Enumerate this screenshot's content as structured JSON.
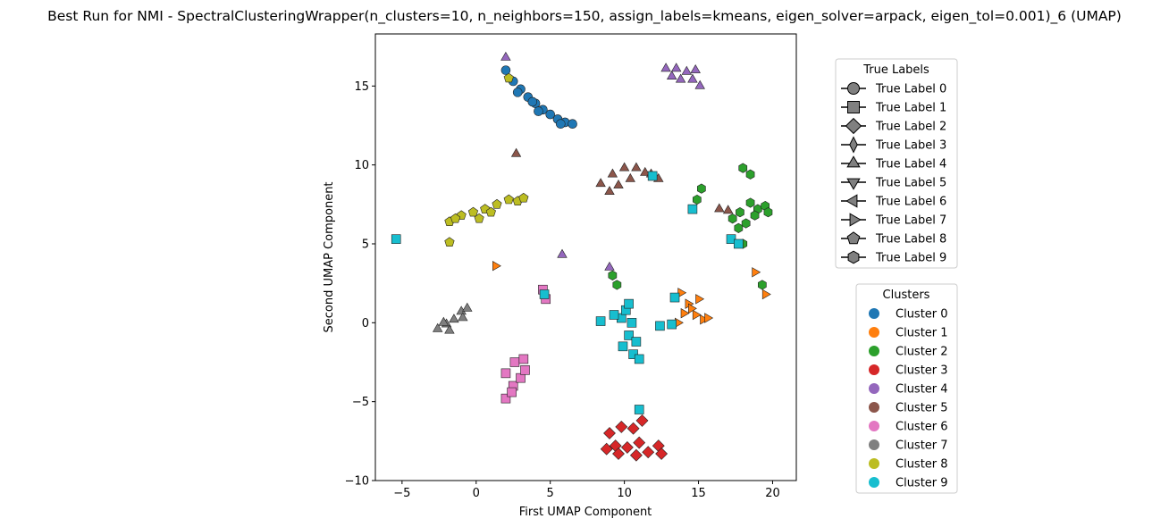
{
  "chart_data": {
    "type": "scatter",
    "title": "Best Run for NMI - SpectralClusteringWrapper(n_clusters=10, n_neighbors=150, assign_labels=kmeans, eigen_solver=arpack, eigen_tol=0.001)_6 (UMAP)",
    "xlabel": "First UMAP Component",
    "ylabel": "Second UMAP Component",
    "xlim": [
      -6.8,
      21.6
    ],
    "ylim": [
      -10,
      18.3
    ],
    "xticks": [
      "−5",
      "0",
      "5",
      "10",
      "15",
      "20"
    ],
    "xtick_values": [
      -5,
      0,
      5,
      10,
      15,
      20
    ],
    "yticks": [
      "−10",
      "−5",
      "0",
      "5",
      "10",
      "15"
    ],
    "ytick_values": [
      -10,
      -5,
      0,
      5,
      10,
      15
    ],
    "grid": false,
    "colors": [
      "#1f77b4",
      "#ff7f0e",
      "#2ca02c",
      "#d62728",
      "#9467bd",
      "#8c564b",
      "#e377c2",
      "#7f7f7f",
      "#bcbd22",
      "#17becf"
    ],
    "legends": {
      "true_labels": {
        "title": "True Labels",
        "placement": "upper-right-outside",
        "entries": [
          "True Label 0",
          "True Label 1",
          "True Label 2",
          "True Label 3",
          "True Label 4",
          "True Label 5",
          "True Label 6",
          "True Label 7",
          "True Label 8",
          "True Label 9"
        ],
        "markers": [
          "circle",
          "square",
          "diamond",
          "thin-diamond",
          "triangle-up",
          "triangle-down",
          "triangle-left",
          "triangle-right",
          "pentagon",
          "hexagon"
        ]
      },
      "clusters": {
        "title": "Clusters",
        "placement": "lower-right-outside",
        "entries": [
          "Cluster 0",
          "Cluster 1",
          "Cluster 2",
          "Cluster 3",
          "Cluster 4",
          "Cluster 5",
          "Cluster 6",
          "Cluster 7",
          "Cluster 8",
          "Cluster 9"
        ]
      }
    },
    "series": [
      {
        "cluster": 0,
        "marker": "circle",
        "points": [
          [
            2.0,
            16.0
          ],
          [
            2.5,
            15.3
          ],
          [
            3.0,
            14.8
          ],
          [
            3.5,
            14.3
          ],
          [
            4.0,
            13.9
          ],
          [
            4.5,
            13.5
          ],
          [
            5.0,
            13.2
          ],
          [
            5.5,
            12.9
          ],
          [
            6.0,
            12.7
          ],
          [
            6.5,
            12.6
          ],
          [
            2.8,
            14.6
          ],
          [
            4.2,
            13.4
          ],
          [
            5.7,
            12.6
          ],
          [
            3.8,
            14.0
          ]
        ]
      },
      {
        "cluster": 1,
        "marker": "triangle-right",
        "points": [
          [
            13.8,
            1.9
          ],
          [
            14.3,
            1.2
          ],
          [
            14.8,
            0.5
          ],
          [
            15.3,
            0.2
          ],
          [
            14.5,
            0.9
          ],
          [
            15.0,
            1.5
          ],
          [
            14.0,
            0.6
          ],
          [
            13.6,
            0.0
          ],
          [
            15.6,
            0.3
          ],
          [
            1.3,
            3.6
          ],
          [
            18.8,
            3.2
          ],
          [
            19.5,
            1.8
          ]
        ]
      },
      {
        "cluster": 2,
        "marker": "hexagon",
        "points": [
          [
            18.5,
            7.6
          ],
          [
            19.0,
            7.2
          ],
          [
            19.5,
            7.4
          ],
          [
            18.8,
            6.8
          ],
          [
            19.7,
            7.0
          ],
          [
            17.8,
            7.0
          ],
          [
            17.3,
            6.6
          ],
          [
            18.2,
            6.3
          ],
          [
            17.7,
            6.0
          ],
          [
            15.2,
            8.5
          ],
          [
            14.9,
            7.8
          ],
          [
            18.0,
            9.8
          ],
          [
            18.5,
            9.4
          ],
          [
            19.3,
            2.4
          ],
          [
            18.0,
            5.0
          ],
          [
            9.2,
            3.0
          ],
          [
            9.5,
            2.4
          ]
        ]
      },
      {
        "cluster": 3,
        "marker": "diamond",
        "points": [
          [
            9.0,
            -7.0
          ],
          [
            9.8,
            -6.6
          ],
          [
            10.6,
            -6.7
          ],
          [
            9.4,
            -7.8
          ],
          [
            10.2,
            -7.9
          ],
          [
            11.0,
            -7.6
          ],
          [
            8.8,
            -8.0
          ],
          [
            10.8,
            -8.4
          ],
          [
            11.6,
            -8.2
          ],
          [
            12.3,
            -7.8
          ],
          [
            12.5,
            -8.3
          ],
          [
            11.2,
            -6.2
          ],
          [
            9.6,
            -8.3
          ]
        ]
      },
      {
        "cluster": 4,
        "marker": "triangle-up",
        "points": [
          [
            12.8,
            16.1
          ],
          [
            13.5,
            16.1
          ],
          [
            14.2,
            15.9
          ],
          [
            13.8,
            15.4
          ],
          [
            14.6,
            15.4
          ],
          [
            15.1,
            15.0
          ],
          [
            13.2,
            15.6
          ],
          [
            14.8,
            16.0
          ],
          [
            2.0,
            16.8
          ],
          [
            5.8,
            4.3
          ],
          [
            9.0,
            3.5
          ]
        ]
      },
      {
        "cluster": 5,
        "marker": "triangle-up",
        "points": [
          [
            8.4,
            8.8
          ],
          [
            9.2,
            9.4
          ],
          [
            10.0,
            9.8
          ],
          [
            10.8,
            9.8
          ],
          [
            11.4,
            9.5
          ],
          [
            9.6,
            8.7
          ],
          [
            10.4,
            9.1
          ],
          [
            9.0,
            8.3
          ],
          [
            11.8,
            9.4
          ],
          [
            12.3,
            9.1
          ],
          [
            2.7,
            10.7
          ],
          [
            16.4,
            7.2
          ],
          [
            17.0,
            7.1
          ]
        ]
      },
      {
        "cluster": 6,
        "marker": "square",
        "points": [
          [
            2.0,
            -3.2
          ],
          [
            2.6,
            -2.5
          ],
          [
            3.2,
            -2.3
          ],
          [
            2.5,
            -4.0
          ],
          [
            3.0,
            -3.5
          ],
          [
            2.0,
            -4.8
          ],
          [
            2.4,
            -4.4
          ],
          [
            3.3,
            -3.0
          ],
          [
            4.5,
            2.1
          ],
          [
            4.7,
            1.5
          ]
        ]
      },
      {
        "cluster": 7,
        "marker": "triangle-up",
        "points": [
          [
            -2.6,
            -0.4
          ],
          [
            -2.0,
            -0.1
          ],
          [
            -1.5,
            0.2
          ],
          [
            -1.0,
            0.7
          ],
          [
            -0.6,
            0.9
          ],
          [
            -1.8,
            -0.5
          ],
          [
            -2.2,
            0.0
          ],
          [
            -0.9,
            0.3
          ]
        ]
      },
      {
        "cluster": 8,
        "marker": "pentagon",
        "points": [
          [
            -1.8,
            6.4
          ],
          [
            -1.0,
            6.8
          ],
          [
            -0.2,
            7.0
          ],
          [
            0.6,
            7.2
          ],
          [
            1.4,
            7.5
          ],
          [
            2.2,
            7.8
          ],
          [
            2.8,
            7.7
          ],
          [
            3.2,
            7.9
          ],
          [
            -1.4,
            6.6
          ],
          [
            0.2,
            6.6
          ],
          [
            1.0,
            7.0
          ],
          [
            -1.8,
            5.1
          ],
          [
            2.2,
            15.5
          ]
        ]
      },
      {
        "cluster": 9,
        "marker": "square",
        "points": [
          [
            9.8,
            0.3
          ],
          [
            10.5,
            0.0
          ],
          [
            10.3,
            -0.8
          ],
          [
            10.8,
            -1.2
          ],
          [
            9.9,
            -1.5
          ],
          [
            10.6,
            -2.0
          ],
          [
            11.0,
            -2.3
          ],
          [
            10.1,
            0.8
          ],
          [
            9.3,
            0.5
          ],
          [
            8.4,
            0.1
          ],
          [
            10.3,
            1.2
          ],
          [
            12.4,
            -0.2
          ],
          [
            13.2,
            -0.1
          ],
          [
            13.4,
            1.6
          ],
          [
            11.9,
            9.3
          ],
          [
            17.2,
            5.3
          ],
          [
            17.7,
            5.0
          ],
          [
            11.0,
            -5.5
          ],
          [
            14.6,
            7.2
          ],
          [
            -5.4,
            5.3
          ],
          [
            4.6,
            1.8
          ]
        ]
      }
    ]
  }
}
